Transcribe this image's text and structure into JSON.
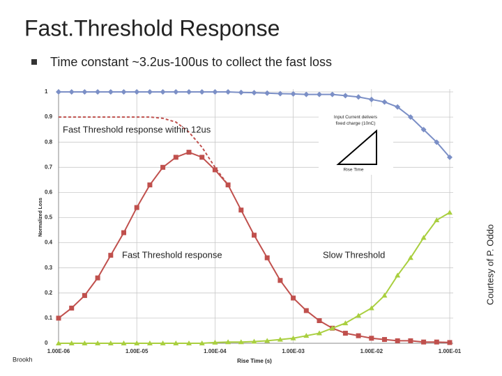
{
  "slide": {
    "title": "Fast.Threshold Response",
    "bullet": "Time constant ~3.2us-100us to collect the fast loss",
    "credit": "Courtesy of P. Oddo",
    "footer_left": "Brookh"
  },
  "chart_data": {
    "type": "line",
    "xlabel": "Rise Time (s)",
    "ylabel": "Normalized Loss",
    "log_x": true,
    "grid": true,
    "legend": false,
    "xlim": [
      1e-06,
      0.1
    ],
    "ylim": [
      0,
      1
    ],
    "xticks": [
      {
        "value": 1e-06,
        "label": "1.00E-06"
      },
      {
        "value": 1e-05,
        "label": "1.00E-05"
      },
      {
        "value": 0.0001,
        "label": "1.00E-04"
      },
      {
        "value": 0.001,
        "label": "1.00E-03"
      },
      {
        "value": 0.01,
        "label": "1.00E-02"
      },
      {
        "value": 0.1,
        "label": "1.00E-01"
      }
    ],
    "yticks": [
      0,
      0.1,
      0.2,
      0.3,
      0.4,
      0.5,
      0.6,
      0.7,
      0.8,
      0.9,
      1
    ],
    "x": [
      1e-06,
      1.468e-06,
      2.154e-06,
      3.162e-06,
      4.642e-06,
      6.813e-06,
      1e-05,
      1.468e-05,
      2.154e-05,
      3.162e-05,
      4.642e-05,
      6.813e-05,
      0.0001,
      0.0001468,
      0.0002154,
      0.0003162,
      0.0004642,
      0.0006813,
      0.001,
      0.001468,
      0.002154,
      0.003162,
      0.004642,
      0.006813,
      0.01,
      0.01468,
      0.02154,
      0.03162,
      0.04642,
      0.06813,
      0.1
    ],
    "series": [
      {
        "color": "#7b8fc6",
        "marker": "diamond",
        "dashed": false,
        "values": [
          1,
          1,
          1,
          1,
          1,
          1,
          1,
          1,
          1,
          1,
          1,
          1,
          1,
          1,
          0.998,
          0.997,
          0.995,
          0.993,
          0.992,
          0.99,
          0.99,
          0.99,
          0.985,
          0.98,
          0.97,
          0.96,
          0.94,
          0.9,
          0.85,
          0.8,
          0.74
        ]
      },
      {
        "color": "#c0504d",
        "marker": "square",
        "dashed": false,
        "values": [
          0.1,
          0.14,
          0.19,
          0.26,
          0.35,
          0.44,
          0.54,
          0.63,
          0.7,
          0.74,
          0.76,
          0.74,
          0.69,
          0.63,
          0.53,
          0.43,
          0.34,
          0.25,
          0.18,
          0.13,
          0.09,
          0.06,
          0.04,
          0.03,
          0.02,
          0.015,
          0.01,
          0.01,
          0.005,
          0.005,
          0.003
        ]
      },
      {
        "color": "#a9cf3f",
        "marker": "triangle",
        "dashed": false,
        "values": [
          0,
          0,
          0,
          0,
          0,
          0,
          0,
          0,
          0,
          0,
          0,
          0,
          0.003,
          0.005,
          0.005,
          0.007,
          0.01,
          0.015,
          0.02,
          0.03,
          0.04,
          0.06,
          0.08,
          0.11,
          0.14,
          0.19,
          0.27,
          0.34,
          0.42,
          0.49,
          0.52
        ]
      },
      {
        "color": "#c0504d",
        "marker": "none",
        "dashed": true,
        "values": [
          0.9,
          0.9,
          0.9,
          0.9,
          0.9,
          0.9,
          0.9,
          0.9,
          0.895,
          0.88,
          0.84,
          0.78,
          0.7,
          0.63,
          null,
          null,
          null,
          null,
          null,
          null,
          null,
          null,
          null,
          null,
          null,
          null,
          null,
          null,
          null,
          null,
          null
        ]
      }
    ],
    "annotations": [
      "Fast Threshold response within 12us",
      "Fast Threshold response",
      "Slow Threshold"
    ],
    "inset": {
      "title": "Input Current delivers fixed charge (10nC)",
      "axis": "Rise Time"
    }
  }
}
